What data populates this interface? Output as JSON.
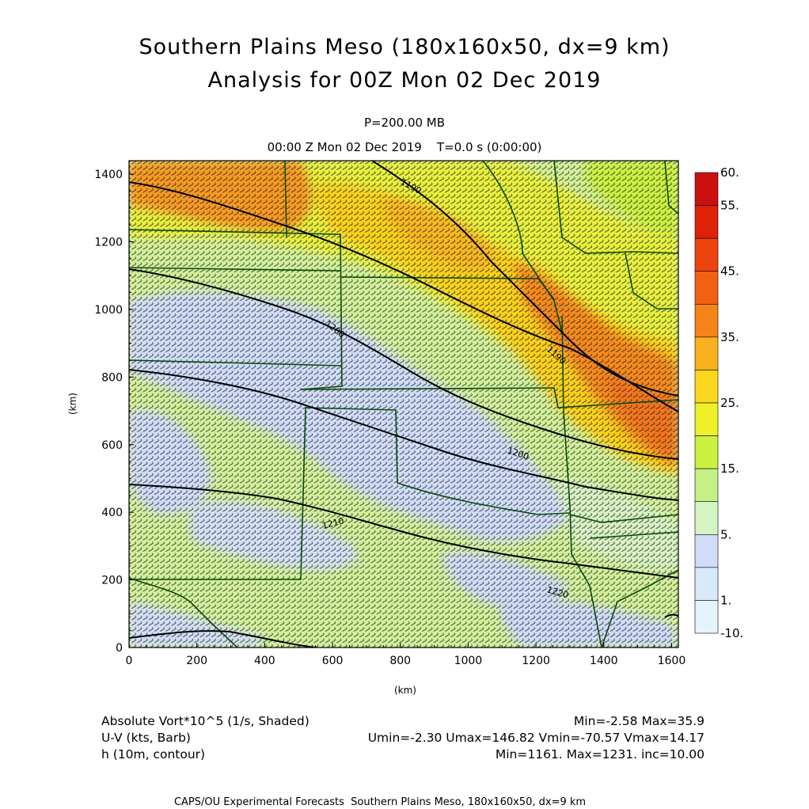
{
  "header": {
    "title_line1": "Southern Plains Meso (180x160x50, dx=9 km)",
    "title_line2": "Analysis for 00Z Mon 02 Dec 2019",
    "level": "P=200.00 MB",
    "valid_time": "00:00 Z Mon 02 Dec 2019    T=0.0 s (0:00:00)"
  },
  "axes": {
    "x_label": "(km)",
    "y_label": "(km)",
    "x_ticks": [
      "0",
      "200",
      "400",
      "600",
      "800",
      "1000",
      "1200",
      "1400",
      "1600"
    ],
    "y_ticks": [
      "0",
      "200",
      "400",
      "600",
      "800",
      "1000",
      "1200",
      "1400"
    ],
    "x_range": [
      0,
      1620
    ],
    "y_range": [
      0,
      1440
    ]
  },
  "colorbar": {
    "labels": [
      "60.",
      "55.",
      "45.",
      "35.",
      "25.",
      "15.",
      "5.",
      "1.",
      "-10."
    ],
    "colors": [
      "#cc1010",
      "#dd2208",
      "#ee4410",
      "#f26014",
      "#f68418",
      "#fbb020",
      "#fbd81e",
      "#eef028",
      "#ccf040",
      "#c4f088",
      "#d4f4c2",
      "#d0dcf8",
      "#d6eaf8",
      "#e4f4fc"
    ]
  },
  "contours": {
    "labels": [
      "1190",
      "1190",
      "1200",
      "1200",
      "1210",
      "1220"
    ]
  },
  "legend": {
    "field1_name": "Absolute Vort*10^5 (1/s, Shaded)",
    "field1_stats": "Min=-2.58 Max=35.9",
    "field2_name": "U-V (kts, Barb)",
    "field2_stats": "Umin=-2.30 Umax=146.82 Vmin=-70.57 Vmax=14.17",
    "field3_name": "h (10m, contour)",
    "field3_stats": "Min=1161. Max=1231. inc=10.00"
  },
  "footer": {
    "credit": "CAPS/OU Experimental Forecasts  Southern Plains Meso, 180x160x50, dx=9 km"
  },
  "colors": {
    "background_field": "#d4f4a0",
    "low_vort": "#d0dcf8",
    "mid_vort": "#e8f040",
    "high_vort": "#f68418",
    "contour": "#000000",
    "border": "#0a4a0a",
    "barb": "#202020"
  }
}
